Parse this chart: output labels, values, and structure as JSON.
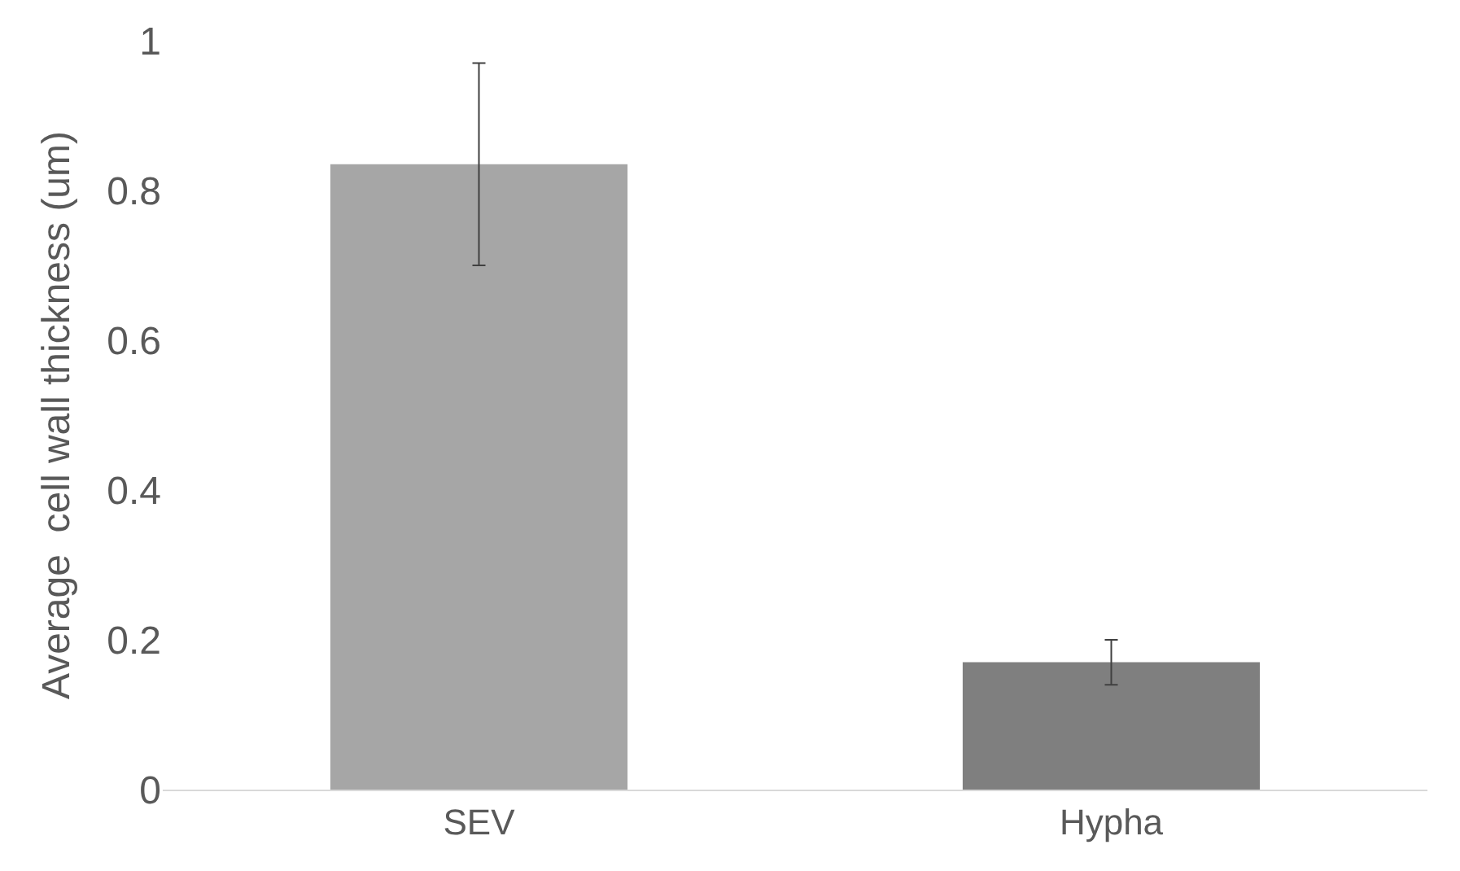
{
  "chart_data": {
    "type": "bar",
    "categories": [
      "SEV",
      "Hypha"
    ],
    "values": [
      0.835,
      0.17
    ],
    "colors": [
      "#a6a6a6",
      "#7f7f7f"
    ],
    "errors": [
      0.135,
      0.03
    ],
    "ylabel": "Average  cell wall thickness (um)",
    "ylim": [
      0,
      1
    ],
    "yticks": [
      0,
      0.2,
      0.4,
      0.6,
      0.8,
      1
    ],
    "grid": false,
    "legend": false
  }
}
